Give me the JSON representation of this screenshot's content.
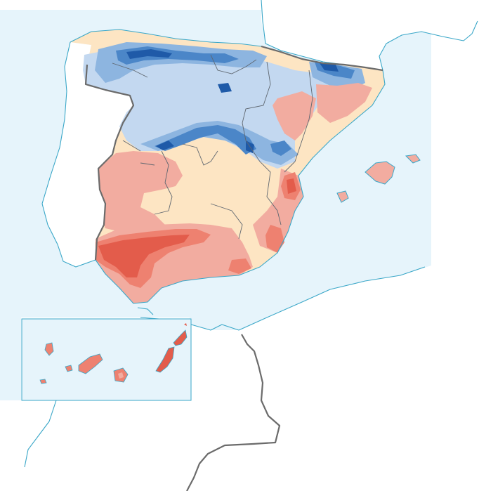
{
  "map": {
    "colors": {
      "sea": "#e6f4fb",
      "coast": "#3aa7c8",
      "land_outside": "#ffffff",
      "border": "#6b6b6b",
      "region_line": "#5f6770"
    },
    "scale": [
      {
        "class": "very-dark-blue",
        "color": "#1f5aa8"
      },
      {
        "class": "dark-blue",
        "color": "#4b86c8"
      },
      {
        "class": "mid-blue",
        "color": "#8db5e0"
      },
      {
        "class": "light-blue",
        "color": "#c3d8f0"
      },
      {
        "class": "cream",
        "color": "#fde5c3"
      },
      {
        "class": "light-red",
        "color": "#f2aca0"
      },
      {
        "class": "red",
        "color": "#ee8170"
      },
      {
        "class": "dark-red",
        "color": "#e35c4b"
      }
    ]
  }
}
